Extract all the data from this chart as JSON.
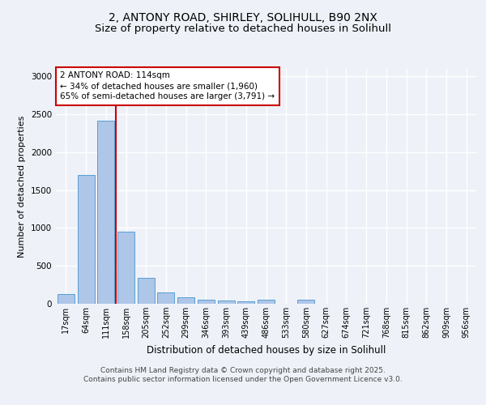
{
  "title_line1": "2, ANTONY ROAD, SHIRLEY, SOLIHULL, B90 2NX",
  "title_line2": "Size of property relative to detached houses in Solihull",
  "xlabel": "Distribution of detached houses by size in Solihull",
  "ylabel": "Number of detached properties",
  "categories": [
    "17sqm",
    "64sqm",
    "111sqm",
    "158sqm",
    "205sqm",
    "252sqm",
    "299sqm",
    "346sqm",
    "393sqm",
    "439sqm",
    "486sqm",
    "533sqm",
    "580sqm",
    "627sqm",
    "674sqm",
    "721sqm",
    "768sqm",
    "815sqm",
    "862sqm",
    "909sqm",
    "956sqm"
  ],
  "values": [
    130,
    1700,
    2420,
    950,
    340,
    145,
    85,
    55,
    45,
    30,
    55,
    0,
    50,
    0,
    0,
    0,
    0,
    0,
    0,
    0,
    0
  ],
  "bar_color": "#aec6e8",
  "bar_edge_color": "#5a9fd4",
  "red_line_x": 2.5,
  "annotation_text": "2 ANTONY ROAD: 114sqm\n← 34% of detached houses are smaller (1,960)\n65% of semi-detached houses are larger (3,791) →",
  "annotation_box_color": "#ffffff",
  "annotation_box_edge_color": "#cc0000",
  "red_line_color": "#cc0000",
  "footer_line1": "Contains HM Land Registry data © Crown copyright and database right 2025.",
  "footer_line2": "Contains public sector information licensed under the Open Government Licence v3.0.",
  "ylim": [
    0,
    3100
  ],
  "background_color": "#eef2f8",
  "plot_background": "#eef2f8",
  "grid_color": "#ffffff",
  "title_fontsize": 10,
  "subtitle_fontsize": 9.5,
  "tick_fontsize": 7,
  "ylabel_fontsize": 8,
  "xlabel_fontsize": 8.5,
  "footer_fontsize": 6.5,
  "annotation_fontsize": 7.5
}
